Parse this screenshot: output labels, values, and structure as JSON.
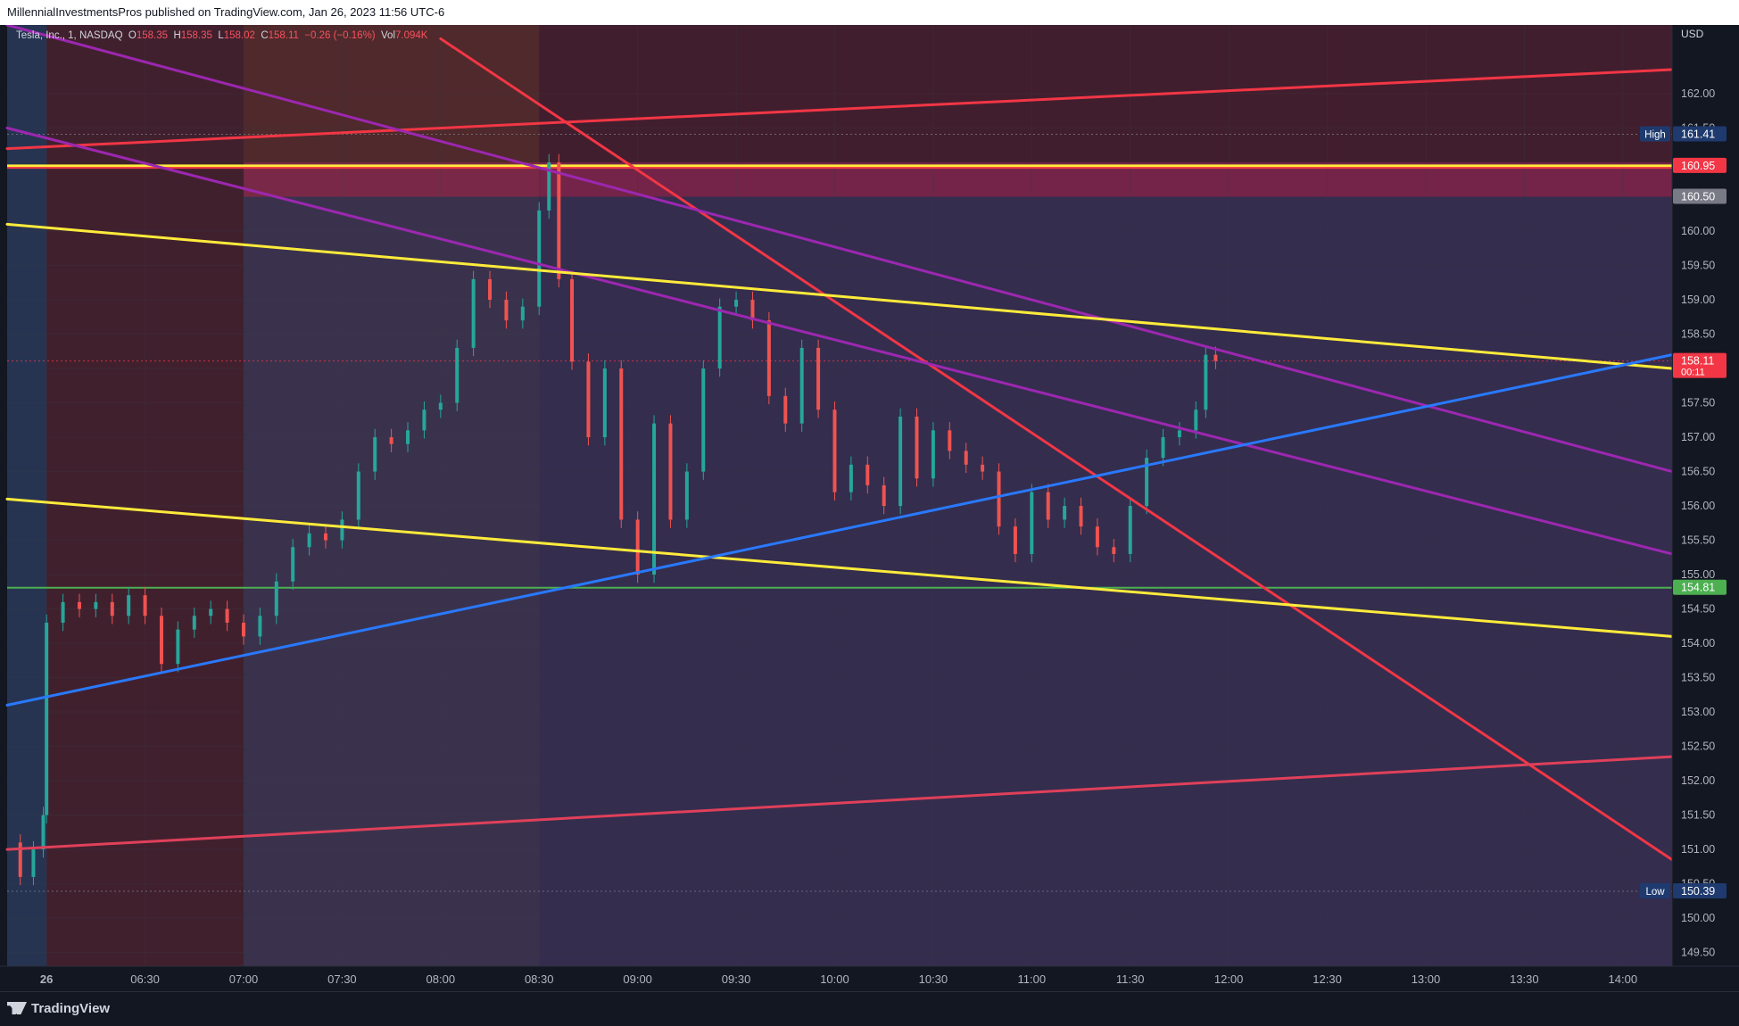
{
  "header": {
    "published_by": "MillennialInvestmentsPros published on TradingView.com, Jan 26, 2023 11:56 UTC-6"
  },
  "legend": {
    "symbol": "Tesla, Inc., 1, NASDAQ",
    "open_label": "O",
    "open": "158.35",
    "high_label": "H",
    "high": "158.35",
    "low_label": "L",
    "low": "158.02",
    "close_label": "C",
    "close": "158.11",
    "change": "−0.26 (−0.16%)",
    "vol_label": "Vol",
    "vol": "7.094K"
  },
  "footer": {
    "brand": "TradingView"
  },
  "colors": {
    "background": "#131722",
    "up": "#26a69a",
    "down": "#ef5350",
    "red_line": "#f23645",
    "yellow_line": "#ffeb3b",
    "purple_line": "#9c27b0",
    "blue_line": "#2962ff",
    "green_line": "#4caf50",
    "orange_line": "#ff9800"
  },
  "chart_data": {
    "type": "line",
    "title": "Tesla, Inc., 1, NASDAQ",
    "currency": "USD",
    "xlabel": "",
    "ylabel": "",
    "ylim": [
      149.3,
      163.0
    ],
    "xlim": [
      "05:48",
      "14:15"
    ],
    "y_ticks": [
      149.5,
      150.0,
      150.5,
      151.0,
      151.5,
      152.0,
      152.5,
      153.0,
      153.5,
      154.0,
      154.5,
      155.0,
      155.5,
      156.0,
      156.5,
      157.0,
      157.5,
      158.0,
      158.5,
      159.0,
      159.5,
      160.0,
      161.5,
      162.0
    ],
    "x_ticks": [
      {
        "t": "06:00",
        "label": "26"
      },
      {
        "t": "06:30",
        "label": "06:30"
      },
      {
        "t": "07:00",
        "label": "07:00"
      },
      {
        "t": "07:30",
        "label": "07:30"
      },
      {
        "t": "08:00",
        "label": "08:00"
      },
      {
        "t": "08:30",
        "label": "08:30"
      },
      {
        "t": "09:00",
        "label": "09:00"
      },
      {
        "t": "09:30",
        "label": "09:30"
      },
      {
        "t": "10:00",
        "label": "10:00"
      },
      {
        "t": "10:30",
        "label": "10:30"
      },
      {
        "t": "11:00",
        "label": "11:00"
      },
      {
        "t": "11:30",
        "label": "11:30"
      },
      {
        "t": "12:00",
        "label": "12:00"
      },
      {
        "t": "12:30",
        "label": "12:30"
      },
      {
        "t": "13:00",
        "label": "13:00"
      },
      {
        "t": "13:30",
        "label": "13:30"
      },
      {
        "t": "14:00",
        "label": "14:00"
      }
    ],
    "price_labels": [
      {
        "value": 161.41,
        "text": "161.41",
        "tag": "High",
        "color": "#1e3a6e"
      },
      {
        "value": 160.95,
        "text": "160.95",
        "color": "#f23645"
      },
      {
        "value": 160.5,
        "text": "160.50",
        "color": "#787b86"
      },
      {
        "value": 158.11,
        "text": "158.11",
        "sub": "00:11",
        "color": "#f23645"
      },
      {
        "value": 154.81,
        "text": "154.81",
        "color": "#4caf50"
      },
      {
        "value": 150.39,
        "text": "150.39",
        "tag": "Low",
        "color": "#1e3a6e"
      }
    ],
    "zones": [
      {
        "from": "05:48",
        "to": "06:00",
        "color": "#2a3a5a"
      },
      {
        "from": "06:00",
        "to": "07:00",
        "color": "#4a2230"
      },
      {
        "from": "07:00",
        "to": "08:30",
        "color": "#5a2d2d"
      },
      {
        "from": "08:30",
        "to": "14:15",
        "color": "#4a2030"
      }
    ],
    "boxes": [
      {
        "t1": "07:00",
        "t2": "14:15",
        "y1": 160.5,
        "y2": 161.0,
        "color": "#9c2a5e",
        "opacity": 0.55
      },
      {
        "t1": "07:00",
        "t2": "14:15",
        "y1": 149.3,
        "y2": 160.5,
        "color": "#2a3a6a",
        "opacity": 0.55
      }
    ],
    "horizontal_lines": [
      {
        "y": 160.95,
        "color": "#ffeb3b",
        "width": 3
      },
      {
        "y": 160.92,
        "color": "#f23645",
        "width": 2
      },
      {
        "y": 154.81,
        "color": "#4caf50",
        "width": 2
      }
    ],
    "trendlines": [
      {
        "name": "red-resistance-top",
        "color": "#f23645",
        "points": [
          [
            "05:48",
            161.2
          ],
          [
            "14:15",
            162.35
          ]
        ]
      },
      {
        "name": "red-descending",
        "color": "#f23645",
        "points": [
          [
            "08:00",
            162.8
          ],
          [
            "14:15",
            150.85
          ]
        ]
      },
      {
        "name": "red-support-low",
        "color": "#e0405a",
        "points": [
          [
            "05:48",
            151.0
          ],
          [
            "14:15",
            152.35
          ]
        ]
      },
      {
        "name": "purple-upper",
        "color": "#9c27b0",
        "points": [
          [
            "05:48",
            163.0
          ],
          [
            "14:15",
            156.5
          ]
        ]
      },
      {
        "name": "purple-lower",
        "color": "#9c27b0",
        "points": [
          [
            "05:48",
            161.5
          ],
          [
            "14:15",
            155.3
          ]
        ]
      },
      {
        "name": "yellow-upper",
        "color": "#ffeb3b",
        "points": [
          [
            "05:48",
            160.1
          ],
          [
            "14:15",
            158.0
          ]
        ]
      },
      {
        "name": "yellow-lower",
        "color": "#ffeb3b",
        "points": [
          [
            "05:48",
            156.1
          ],
          [
            "14:15",
            154.1
          ]
        ]
      },
      {
        "name": "blue-ascending",
        "color": "#2979ff",
        "points": [
          [
            "05:48",
            153.1
          ],
          [
            "14:15",
            158.2
          ]
        ]
      }
    ],
    "candles_close": [
      [
        "05:48",
        151.1
      ],
      [
        "05:52",
        150.6
      ],
      [
        "05:56",
        151.0
      ],
      [
        "05:59",
        151.5
      ],
      [
        "06:00",
        154.3
      ],
      [
        "06:05",
        154.6
      ],
      [
        "06:10",
        154.5
      ],
      [
        "06:15",
        154.6
      ],
      [
        "06:20",
        154.4
      ],
      [
        "06:25",
        154.7
      ],
      [
        "06:30",
        154.4
      ],
      [
        "06:35",
        153.7
      ],
      [
        "06:40",
        154.2
      ],
      [
        "06:45",
        154.4
      ],
      [
        "06:50",
        154.5
      ],
      [
        "06:55",
        154.3
      ],
      [
        "07:00",
        154.1
      ],
      [
        "07:05",
        154.4
      ],
      [
        "07:10",
        154.9
      ],
      [
        "07:15",
        155.4
      ],
      [
        "07:20",
        155.6
      ],
      [
        "07:25",
        155.5
      ],
      [
        "07:30",
        155.8
      ],
      [
        "07:35",
        156.5
      ],
      [
        "07:40",
        157.0
      ],
      [
        "07:45",
        156.9
      ],
      [
        "07:50",
        157.1
      ],
      [
        "07:55",
        157.4
      ],
      [
        "08:00",
        157.5
      ],
      [
        "08:05",
        158.3
      ],
      [
        "08:10",
        159.3
      ],
      [
        "08:15",
        159.0
      ],
      [
        "08:20",
        158.7
      ],
      [
        "08:25",
        158.9
      ],
      [
        "08:30",
        160.3
      ],
      [
        "08:33",
        161.0
      ],
      [
        "08:36",
        159.3
      ],
      [
        "08:40",
        158.1
      ],
      [
        "08:45",
        157.0
      ],
      [
        "08:50",
        158.0
      ],
      [
        "08:55",
        155.8
      ],
      [
        "09:00",
        155.0
      ],
      [
        "09:05",
        157.2
      ],
      [
        "09:10",
        155.8
      ],
      [
        "09:15",
        156.5
      ],
      [
        "09:20",
        158.0
      ],
      [
        "09:25",
        158.9
      ],
      [
        "09:30",
        159.0
      ],
      [
        "09:35",
        158.7
      ],
      [
        "09:40",
        157.6
      ],
      [
        "09:45",
        157.2
      ],
      [
        "09:50",
        158.3
      ],
      [
        "09:55",
        157.4
      ],
      [
        "10:00",
        156.2
      ],
      [
        "10:05",
        156.6
      ],
      [
        "10:10",
        156.3
      ],
      [
        "10:15",
        156.0
      ],
      [
        "10:20",
        157.3
      ],
      [
        "10:25",
        156.4
      ],
      [
        "10:30",
        157.1
      ],
      [
        "10:35",
        156.8
      ],
      [
        "10:40",
        156.6
      ],
      [
        "10:45",
        156.5
      ],
      [
        "10:50",
        155.7
      ],
      [
        "10:55",
        155.3
      ],
      [
        "11:00",
        156.2
      ],
      [
        "11:05",
        155.8
      ],
      [
        "11:10",
        156.0
      ],
      [
        "11:15",
        155.7
      ],
      [
        "11:20",
        155.4
      ],
      [
        "11:25",
        155.3
      ],
      [
        "11:30",
        156.0
      ],
      [
        "11:35",
        156.7
      ],
      [
        "11:40",
        157.0
      ],
      [
        "11:45",
        157.1
      ],
      [
        "11:50",
        157.4
      ],
      [
        "11:53",
        158.2
      ],
      [
        "11:56",
        158.11
      ]
    ]
  }
}
